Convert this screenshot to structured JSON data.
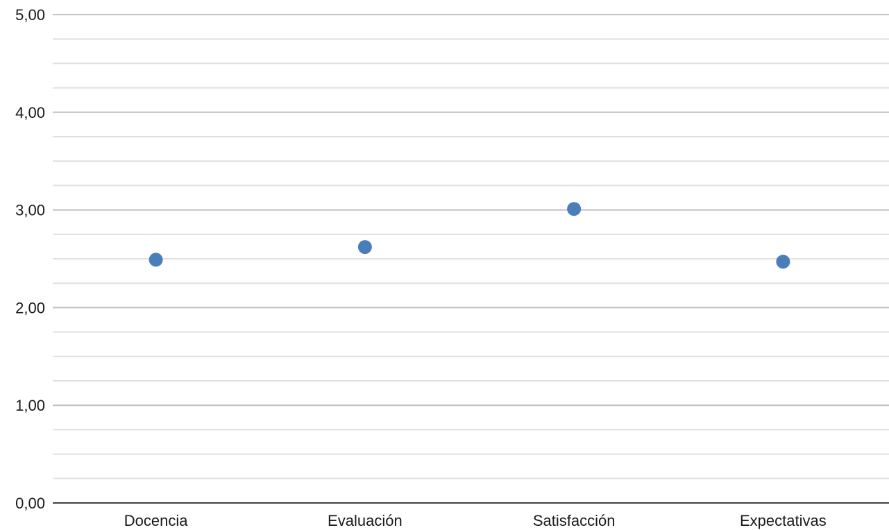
{
  "chart_data": {
    "type": "scatter",
    "title": "",
    "xlabel": "",
    "ylabel": "",
    "categories": [
      "Docencia",
      "Evaluación",
      "Satisfacción",
      "Expectativas"
    ],
    "series": [
      {
        "values": [
          2.49,
          2.62,
          3.01,
          2.47
        ]
      }
    ],
    "ylim": [
      0,
      5
    ],
    "y_major_step": 1,
    "y_minor_step": 0.25,
    "y_tick_labels": [
      "0,00",
      "1,00",
      "2,00",
      "3,00",
      "4,00",
      "5,00"
    ],
    "grid": true,
    "legend": "none",
    "colors": {
      "marker": "#4a7ebb"
    }
  }
}
